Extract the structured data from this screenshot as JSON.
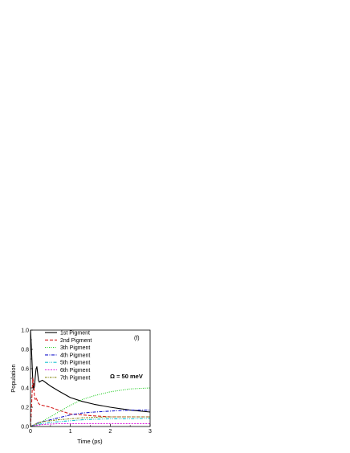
{
  "chart_data": {
    "type": "line",
    "xlabel": "Time (ps)",
    "ylabel": "Population",
    "xlim": [
      0,
      3
    ],
    "ylim": [
      0,
      1.0
    ],
    "x_ticks": [
      "0",
      "1",
      "2",
      "3"
    ],
    "y_ticks": [
      "0.0",
      "0.2",
      "0.4",
      "0.6",
      "0.8",
      "1.0"
    ],
    "annotations": {
      "panel": "(f)",
      "omega": "Ω = 50 meV"
    },
    "legend_position": "top-left",
    "series": [
      {
        "name": "1st Pigment",
        "color": "#000000",
        "dash": "solid",
        "x": [
          0,
          0.02,
          0.04,
          0.06,
          0.08,
          0.1,
          0.12,
          0.14,
          0.16,
          0.18,
          0.2,
          0.22,
          0.25,
          0.3,
          0.4,
          0.5,
          0.7,
          1.0,
          1.3,
          1.6,
          2.0,
          2.5,
          3.0
        ],
        "y": [
          1.0,
          0.85,
          0.65,
          0.45,
          0.38,
          0.42,
          0.52,
          0.6,
          0.62,
          0.55,
          0.48,
          0.46,
          0.47,
          0.48,
          0.45,
          0.42,
          0.37,
          0.3,
          0.26,
          0.23,
          0.2,
          0.17,
          0.15
        ]
      },
      {
        "name": "2nd Pigment",
        "color": "#d62020",
        "dash": "dashed",
        "x": [
          0,
          0.02,
          0.04,
          0.06,
          0.08,
          0.1,
          0.12,
          0.14,
          0.16,
          0.2,
          0.25,
          0.3,
          0.4,
          0.5,
          0.7,
          1.0,
          1.3,
          1.6,
          2.0,
          2.5,
          3.0
        ],
        "y": [
          0.0,
          0.15,
          0.35,
          0.5,
          0.45,
          0.3,
          0.28,
          0.3,
          0.28,
          0.24,
          0.22,
          0.22,
          0.21,
          0.2,
          0.17,
          0.13,
          0.12,
          0.11,
          0.1,
          0.1,
          0.1
        ]
      },
      {
        "name": "3th Pigment",
        "color": "#22cc22",
        "dash": "dotted",
        "x": [
          0,
          0.1,
          0.2,
          0.3,
          0.4,
          0.5,
          0.7,
          1.0,
          1.3,
          1.6,
          2.0,
          2.5,
          3.0
        ],
        "y": [
          0.0,
          0.01,
          0.03,
          0.05,
          0.08,
          0.1,
          0.15,
          0.22,
          0.28,
          0.32,
          0.36,
          0.39,
          0.4
        ]
      },
      {
        "name": "4th Pigment",
        "color": "#1a1acc",
        "dash": "dashdot",
        "x": [
          0,
          0.1,
          0.2,
          0.3,
          0.4,
          0.5,
          0.7,
          1.0,
          1.3,
          1.6,
          2.0,
          2.5,
          3.0
        ],
        "y": [
          0.0,
          0.02,
          0.04,
          0.05,
          0.06,
          0.07,
          0.09,
          0.12,
          0.14,
          0.15,
          0.16,
          0.17,
          0.17
        ]
      },
      {
        "name": "5th Pigment",
        "color": "#18c0d0",
        "dash": "dashdotdot",
        "x": [
          0,
          0.1,
          0.2,
          0.3,
          0.5,
          0.7,
          1.0,
          1.3,
          1.6,
          2.0,
          2.5,
          3.0
        ],
        "y": [
          0.0,
          0.01,
          0.02,
          0.03,
          0.04,
          0.05,
          0.06,
          0.07,
          0.075,
          0.08,
          0.08,
          0.085
        ]
      },
      {
        "name": "6th Pigment",
        "color": "#e020e0",
        "dash": "shortdash",
        "x": [
          0,
          0.1,
          0.2,
          0.3,
          0.5,
          0.7,
          1.0,
          1.5,
          2.0,
          2.5,
          3.0
        ],
        "y": [
          0.0,
          0.01,
          0.015,
          0.02,
          0.025,
          0.03,
          0.03,
          0.03,
          0.03,
          0.03,
          0.03
        ]
      },
      {
        "name": "7th Pigment",
        "color": "#8a8a1a",
        "dash": "shortdashdot",
        "x": [
          0,
          0.1,
          0.2,
          0.3,
          0.5,
          0.7,
          1.0,
          1.3,
          1.6,
          2.0,
          2.5,
          3.0
        ],
        "y": [
          0.0,
          0.02,
          0.04,
          0.05,
          0.06,
          0.07,
          0.08,
          0.09,
          0.095,
          0.1,
          0.1,
          0.1
        ]
      }
    ]
  }
}
